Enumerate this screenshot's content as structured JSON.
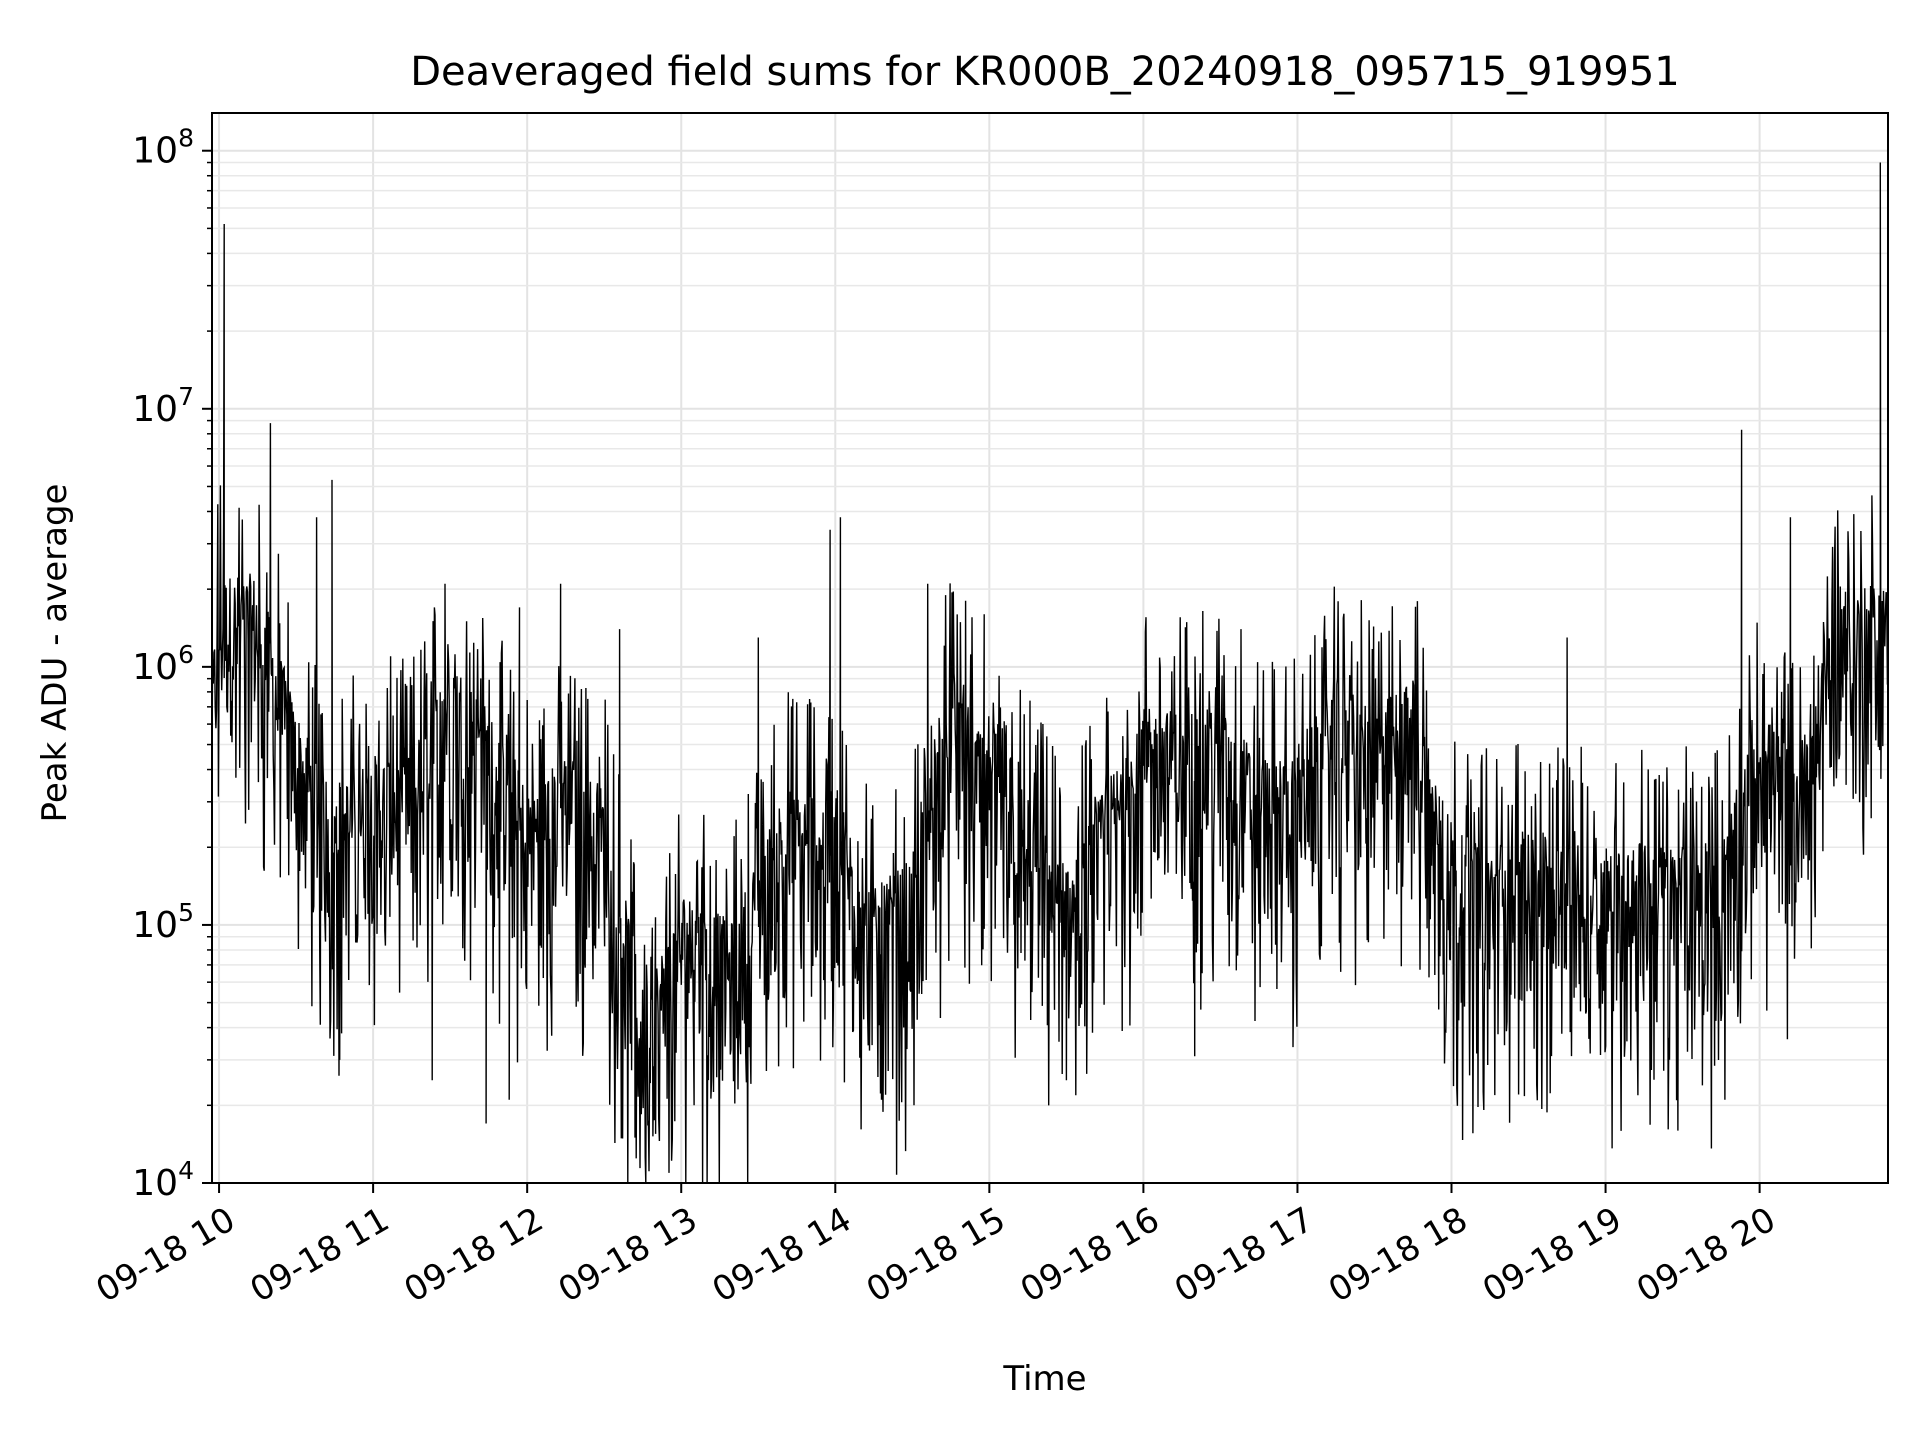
{
  "chart_data": {
    "type": "line",
    "title": "Deaveraged field sums for KR000B_20240918_095715_919951",
    "xlabel": "Time",
    "ylabel": "Peak ADU - average",
    "yscale": "log",
    "ylim": [
      10000,
      140000000
    ],
    "xlim": [
      "2024-09-18 09:57:15",
      "2024-09-18 20:50:00"
    ],
    "grid": true,
    "x_ticks": [
      {
        "value": "2024-09-18 10:00",
        "label": "09-18 10"
      },
      {
        "value": "2024-09-18 11:00",
        "label": "09-18 11"
      },
      {
        "value": "2024-09-18 12:00",
        "label": "09-18 12"
      },
      {
        "value": "2024-09-18 13:00",
        "label": "09-18 13"
      },
      {
        "value": "2024-09-18 14:00",
        "label": "09-18 14"
      },
      {
        "value": "2024-09-18 15:00",
        "label": "09-18 15"
      },
      {
        "value": "2024-09-18 16:00",
        "label": "09-18 16"
      },
      {
        "value": "2024-09-18 17:00",
        "label": "09-18 17"
      },
      {
        "value": "2024-09-18 18:00",
        "label": "09-18 18"
      },
      {
        "value": "2024-09-18 19:00",
        "label": "09-18 19"
      },
      {
        "value": "2024-09-18 20:00",
        "label": "09-18 20"
      }
    ],
    "y_ticks": [
      {
        "value": 10000,
        "base": "10",
        "exp": "4"
      },
      {
        "value": 100000,
        "base": "10",
        "exp": "5"
      },
      {
        "value": 1000000,
        "base": "10",
        "exp": "6"
      },
      {
        "value": 10000000,
        "base": "10",
        "exp": "7"
      },
      {
        "value": 100000000,
        "base": "10",
        "exp": "8"
      }
    ],
    "series": [
      {
        "color": "#000000",
        "baseline": [
          [
            "2024-09-18 09:57",
            400000
          ],
          [
            "2024-09-18 10:00",
            1000000
          ],
          [
            "2024-09-18 10:15",
            1000000
          ],
          [
            "2024-09-18 10:30",
            300000
          ],
          [
            "2024-09-18 10:45",
            150000
          ],
          [
            "2024-09-18 11:00",
            200000
          ],
          [
            "2024-09-18 11:15",
            200000
          ],
          [
            "2024-09-18 11:30",
            500000
          ],
          [
            "2024-09-18 11:45",
            300000
          ],
          [
            "2024-09-18 12:00",
            150000
          ],
          [
            "2024-09-18 12:15",
            200000
          ],
          [
            "2024-09-18 12:30",
            150000
          ],
          [
            "2024-09-18 12:45",
            25000
          ],
          [
            "2024-09-18 12:55",
            40000
          ],
          [
            "2024-09-18 13:00",
            60000
          ],
          [
            "2024-09-18 13:20",
            45000
          ],
          [
            "2024-09-18 13:40",
            150000
          ],
          [
            "2024-09-18 14:00",
            150000
          ],
          [
            "2024-09-18 14:15",
            60000
          ],
          [
            "2024-09-18 14:30",
            80000
          ],
          [
            "2024-09-18 14:45",
            450000
          ],
          [
            "2024-09-18 15:00",
            200000
          ],
          [
            "2024-09-18 15:15",
            150000
          ],
          [
            "2024-09-18 15:30",
            70000
          ],
          [
            "2024-09-18 15:45",
            150000
          ],
          [
            "2024-09-18 16:00",
            300000
          ],
          [
            "2024-09-18 16:15",
            300000
          ],
          [
            "2024-09-18 16:30",
            300000
          ],
          [
            "2024-09-18 16:45",
            200000
          ],
          [
            "2024-09-18 17:00",
            200000
          ],
          [
            "2024-09-18 17:15",
            400000
          ],
          [
            "2024-09-18 17:30",
            300000
          ],
          [
            "2024-09-18 17:45",
            400000
          ],
          [
            "2024-09-18 18:00",
            100000
          ],
          [
            "2024-09-18 18:15",
            90000
          ],
          [
            "2024-09-18 18:30",
            100000
          ],
          [
            "2024-09-18 18:45",
            90000
          ],
          [
            "2024-09-18 19:00",
            90000
          ],
          [
            "2024-09-18 19:15",
            90000
          ],
          [
            "2024-09-18 19:30",
            90000
          ],
          [
            "2024-09-18 19:45",
            90000
          ],
          [
            "2024-09-18 20:00",
            300000
          ],
          [
            "2024-09-18 20:15",
            200000
          ],
          [
            "2024-09-18 20:30",
            900000
          ],
          [
            "2024-09-18 20:50",
            900000
          ]
        ],
        "spikes": [
          [
            "2024-09-18 10:02",
            52000000
          ],
          [
            "2024-09-18 10:20",
            8800000
          ],
          [
            "2024-09-18 10:44",
            5300000
          ],
          [
            "2024-09-18 10:38",
            3800000
          ],
          [
            "2024-09-18 11:28",
            2100000
          ],
          [
            "2024-09-18 11:57",
            1700000
          ],
          [
            "2024-09-18 12:13",
            2100000
          ],
          [
            "2024-09-18 12:36",
            1400000
          ],
          [
            "2024-09-18 13:30",
            1300000
          ],
          [
            "2024-09-18 13:58",
            3400000
          ],
          [
            "2024-09-18 14:02",
            3800000
          ],
          [
            "2024-09-18 14:36",
            2100000
          ],
          [
            "2024-09-18 14:58",
            1600000
          ],
          [
            "2024-09-18 16:38",
            1400000
          ],
          [
            "2024-09-18 18:45",
            1300000
          ],
          [
            "2024-09-18 19:53",
            8300000
          ],
          [
            "2024-09-18 20:12",
            3800000
          ],
          [
            "2024-09-18 20:47",
            90000000
          ]
        ],
        "dips": [
          [
            "2024-09-18 10:47",
            30000
          ],
          [
            "2024-09-18 11:23",
            25000
          ],
          [
            "2024-09-18 11:44",
            17000
          ],
          [
            "2024-09-18 11:53",
            21000
          ],
          [
            "2024-09-18 12:42",
            15000
          ],
          [
            "2024-09-18 12:50",
            15500
          ],
          [
            "2024-09-18 13:05",
            20000
          ],
          [
            "2024-09-18 14:18",
            21000
          ],
          [
            "2024-09-18 15:30",
            25000
          ],
          [
            "2024-09-18 16:20",
            31000
          ],
          [
            "2024-09-18 18:35",
            45000
          ],
          [
            "2024-09-18 19:20",
            42000
          ]
        ]
      }
    ]
  }
}
